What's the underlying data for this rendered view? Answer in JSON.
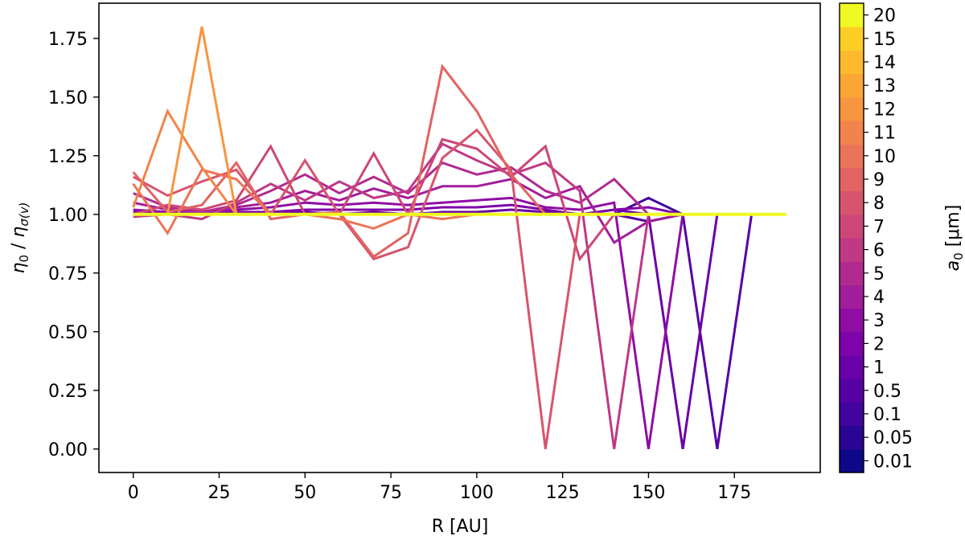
{
  "chart_data": {
    "type": "line",
    "xlabel": "R [AU]",
    "ylabel": {
      "base": "η",
      "base_sub": "0",
      "sep": " / ",
      "base2": "η",
      "base2_sub": "σ(v)"
    },
    "xlim": [
      -10,
      200
    ],
    "ylim": [
      -0.1,
      1.9
    ],
    "xticks": [
      0,
      25,
      50,
      75,
      100,
      125,
      150,
      175
    ],
    "yticks": [
      0.0,
      0.25,
      0.5,
      0.75,
      1.0,
      1.25,
      1.5,
      1.75
    ],
    "ytick_labels": [
      "0.00",
      "0.25",
      "0.50",
      "0.75",
      "1.00",
      "1.25",
      "1.50",
      "1.75"
    ],
    "grid": false,
    "colorbar": {
      "label": {
        "base": "a",
        "sub": "0",
        "rest": " [μm]"
      },
      "levels": [
        "0.01",
        "0.05",
        "0.1",
        "0.5",
        "1",
        "2",
        "3",
        "4",
        "5",
        "6",
        "7",
        "8",
        "9",
        "10",
        "11",
        "12",
        "13",
        "14",
        "15",
        "20"
      ],
      "colormap": "plasma",
      "colors": [
        "#0d0887",
        "#2a0593",
        "#41049d",
        "#5601a4",
        "#6a00a8",
        "#7e03a8",
        "#8f0da4",
        "#a21d9a",
        "#b12a90",
        "#bf3984",
        "#cc4778",
        "#d6556d",
        "#e16462",
        "#ea7457",
        "#f2844b",
        "#f89540",
        "#fca636",
        "#feba2c",
        "#fcce25",
        "#f0f921"
      ]
    },
    "series": [
      {
        "level": "0.01",
        "color": "#0d0887",
        "x": [
          0,
          10,
          20,
          30,
          40,
          50,
          60,
          70,
          80,
          90,
          100,
          110,
          120,
          130,
          140,
          150,
          160,
          170,
          180,
          190
        ],
        "y": [
          1.0,
          1.0,
          1.0,
          1.0,
          1.0,
          1.0,
          1.0,
          1.0,
          1.0,
          1.0,
          1.0,
          1.0,
          1.0,
          1.0,
          1.0,
          1.0,
          1.0,
          1.0,
          1.0,
          1.0
        ]
      },
      {
        "level": "0.05",
        "color": "#41049d",
        "x": [
          0,
          10,
          20,
          30,
          40,
          50,
          60,
          70,
          80,
          90,
          100,
          110,
          120,
          130,
          140,
          150,
          160,
          170,
          180,
          190
        ],
        "y": [
          1.0,
          1.0,
          1.0,
          1.0,
          1.0,
          1.0,
          1.0,
          1.0,
          1.0,
          1.0,
          1.0,
          1.0,
          1.0,
          1.0,
          1.0,
          1.07,
          1.0,
          1.0,
          1.0,
          1.0
        ]
      },
      {
        "level": "0.1",
        "color": "#5601a4",
        "x": [
          0,
          10,
          20,
          30,
          40,
          50,
          60,
          70,
          80,
          90,
          100,
          110,
          120,
          130,
          140,
          150,
          160,
          170,
          180,
          190
        ],
        "y": [
          1.0,
          1.0,
          1.0,
          1.0,
          1.0,
          1.0,
          1.0,
          1.0,
          1.0,
          1.0,
          1.0,
          1.0,
          1.0,
          1.0,
          1.0,
          0.97,
          1.0,
          0.0,
          1.0,
          1.0
        ]
      },
      {
        "level": "0.5",
        "color": "#6a00a8",
        "x": [
          0,
          10,
          20,
          30,
          40,
          50,
          60,
          70,
          80,
          90,
          100,
          110,
          120,
          130,
          140,
          150,
          160,
          170,
          180,
          190
        ],
        "y": [
          1.0,
          1.0,
          1.0,
          1.0,
          1.0,
          1.01,
          1.0,
          1.01,
          1.0,
          1.01,
          1.01,
          1.02,
          1.01,
          1.0,
          1.02,
          1.0,
          0.0,
          1.0,
          1.0,
          1.0
        ]
      },
      {
        "level": "1",
        "color": "#7e03a8",
        "x": [
          0,
          10,
          20,
          30,
          40,
          50,
          60,
          70,
          80,
          90,
          100,
          110,
          120,
          130,
          140,
          150,
          160,
          170,
          180,
          190
        ],
        "y": [
          1.01,
          1.0,
          1.0,
          1.01,
          1.01,
          1.02,
          1.02,
          1.02,
          1.02,
          1.03,
          1.03,
          1.04,
          1.02,
          1.0,
          1.02,
          1.03,
          1.0,
          1.0,
          1.0,
          1.0
        ]
      },
      {
        "level": "2",
        "color": "#8f0da4",
        "x": [
          0,
          10,
          20,
          30,
          40,
          50,
          60,
          70,
          80,
          90,
          100,
          110,
          120,
          130,
          140,
          150,
          160,
          170,
          180,
          190
        ],
        "y": [
          1.02,
          1.01,
          1.0,
          1.02,
          1.03,
          1.05,
          1.04,
          1.05,
          1.04,
          1.05,
          1.06,
          1.07,
          1.03,
          1.02,
          1.05,
          0.0,
          1.0,
          1.0,
          1.0,
          1.0
        ]
      },
      {
        "level": "3",
        "color": "#a21d9a",
        "x": [
          0,
          10,
          20,
          30,
          40,
          50,
          60,
          70,
          80,
          90,
          100,
          110,
          120,
          130,
          140,
          150,
          160,
          170,
          180,
          190
        ],
        "y": [
          1.05,
          1.02,
          1.01,
          1.03,
          1.05,
          1.1,
          1.06,
          1.11,
          1.07,
          1.12,
          1.12,
          1.15,
          1.07,
          1.12,
          0.88,
          0.97,
          1.0,
          1.0,
          1.0,
          1.0
        ]
      },
      {
        "level": "4",
        "color": "#b12a90",
        "x": [
          0,
          10,
          20,
          30,
          40,
          50,
          60,
          70,
          80,
          90,
          100,
          110,
          120,
          130,
          140,
          150,
          160,
          170,
          180,
          190
        ],
        "y": [
          1.09,
          1.03,
          1.01,
          1.04,
          1.1,
          1.17,
          1.09,
          1.16,
          1.09,
          1.22,
          1.17,
          1.2,
          1.1,
          1.05,
          1.15,
          1.0,
          1.0,
          1.0,
          1.0,
          1.0
        ]
      },
      {
        "level": "5",
        "color": "#bf3984",
        "x": [
          0,
          10,
          20,
          30,
          40,
          50,
          60,
          70,
          80,
          90,
          100,
          110,
          120,
          130,
          140,
          150,
          160,
          170,
          180,
          190
        ],
        "y": [
          0.99,
          1.0,
          0.98,
          1.05,
          1.13,
          1.06,
          1.14,
          1.07,
          1.1,
          1.3,
          1.23,
          1.17,
          1.22,
          1.1,
          0.0,
          1.0,
          1.0,
          1.0,
          1.0,
          1.0
        ]
      },
      {
        "level": "6",
        "color": "#cc4778",
        "x": [
          0,
          10,
          20,
          30,
          40,
          50,
          60,
          70,
          80,
          90,
          100,
          110,
          120,
          130,
          140,
          150,
          160,
          170,
          180,
          190
        ],
        "y": [
          1.0,
          1.04,
          1.02,
          1.06,
          1.29,
          1.0,
          1.0,
          1.26,
          1.0,
          1.32,
          1.28,
          1.16,
          1.29,
          0.81,
          1.0,
          1.0,
          1.0,
          1.0,
          1.0,
          1.0
        ]
      },
      {
        "level": "7",
        "color": "#d6556d",
        "x": [
          0,
          10,
          20,
          30,
          40,
          50,
          60,
          70,
          80,
          90,
          100,
          110,
          120,
          130,
          140,
          150,
          160,
          170,
          180,
          190
        ],
        "y": [
          1.16,
          1.08,
          1.14,
          1.19,
          1.0,
          1.23,
          1.0,
          0.81,
          0.86,
          1.24,
          1.36,
          1.19,
          0.0,
          1.0,
          1.0,
          1.0,
          1.0,
          1.0,
          1.0,
          1.0
        ]
      },
      {
        "level": "8",
        "color": "#e16462",
        "x": [
          0,
          10,
          20,
          30,
          40,
          50,
          60,
          70,
          80,
          90,
          100,
          110,
          120,
          130,
          140,
          150,
          160,
          170,
          180,
          190
        ],
        "y": [
          1.18,
          1.01,
          1.04,
          1.22,
          0.98,
          1.0,
          1.01,
          0.82,
          0.92,
          1.63,
          1.44,
          1.17,
          1.0,
          1.0,
          1.0,
          1.0,
          1.0,
          1.0,
          1.0,
          1.0
        ]
      },
      {
        "level": "9",
        "color": "#ea7457",
        "x": [
          0,
          10,
          20,
          30,
          40,
          50,
          60,
          70,
          80,
          90,
          100,
          110,
          120,
          130,
          140,
          150,
          160,
          170,
          180,
          190
        ],
        "y": [
          1.13,
          0.92,
          1.19,
          1.15,
          1.0,
          1.0,
          0.98,
          0.94,
          1.0,
          0.98,
          1.0,
          1.0,
          1.0,
          1.0,
          1.0,
          1.0,
          1.0,
          1.0,
          1.0,
          1.0
        ]
      },
      {
        "level": "10",
        "color": "#f2844b",
        "x": [
          0,
          10,
          20,
          30,
          40,
          50,
          60,
          70,
          80,
          90,
          100,
          110,
          120,
          130,
          140,
          150,
          160,
          170,
          180,
          190
        ],
        "y": [
          1.03,
          1.44,
          1.2,
          1.0,
          1.0,
          1.0,
          1.0,
          1.0,
          1.0,
          1.0,
          1.0,
          1.0,
          1.0,
          1.0,
          1.0,
          1.0,
          1.0,
          1.0,
          1.0,
          1.0
        ]
      },
      {
        "level": "11",
        "color": "#f89540",
        "x": [
          0,
          10,
          20,
          30,
          40,
          50,
          60,
          70,
          80,
          90,
          100,
          110,
          120,
          130,
          140,
          150,
          160,
          170,
          180,
          190
        ],
        "y": [
          1.0,
          1.0,
          1.8,
          1.0,
          1.0,
          1.0,
          1.0,
          1.0,
          1.0,
          1.0,
          1.0,
          1.0,
          1.0,
          1.0,
          1.0,
          1.0,
          1.0,
          1.0,
          1.0,
          1.0
        ]
      },
      {
        "level": "20",
        "color": "#f0f921",
        "x": [
          0,
          10,
          20,
          30,
          40,
          50,
          60,
          70,
          80,
          90,
          100,
          110,
          120,
          130,
          140,
          150,
          160,
          170,
          180,
          190
        ],
        "y": [
          1.0,
          1.0,
          1.0,
          1.0,
          1.0,
          1.0,
          1.0,
          1.0,
          1.0,
          1.0,
          1.0,
          1.0,
          1.0,
          1.0,
          1.0,
          1.0,
          1.0,
          1.0,
          1.0,
          1.0
        ]
      }
    ]
  }
}
